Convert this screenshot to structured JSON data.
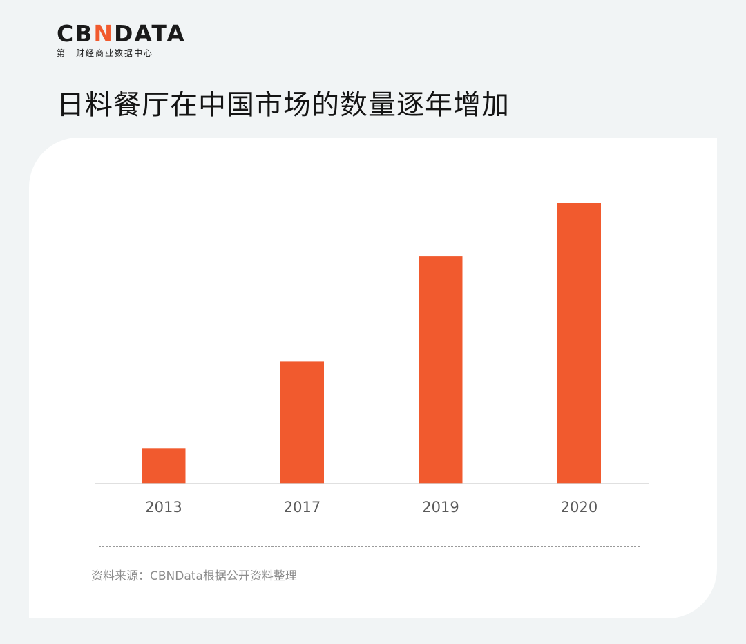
{
  "logo": {
    "text_left": "CB",
    "text_accent": "N",
    "text_right": "DATA",
    "subtitle": "第一财经商业数据中心"
  },
  "title": "日料餐厅在中国市场的数量逐年增加",
  "source": "资料来源：CBNData根据公开资料整理",
  "colors": {
    "bar": "#f15a2e",
    "background": "#f1f4f5",
    "card": "#ffffff"
  },
  "chart_data": {
    "type": "bar",
    "title": "日料餐厅在中国市场的数量逐年增加",
    "xlabel": "",
    "ylabel": "",
    "categories": [
      "2013",
      "2017",
      "2019",
      "2020"
    ],
    "values": [
      12.5,
      43.5,
      81,
      100
    ],
    "ylim": [
      0,
      100
    ],
    "grid": false,
    "legend": "none"
  }
}
